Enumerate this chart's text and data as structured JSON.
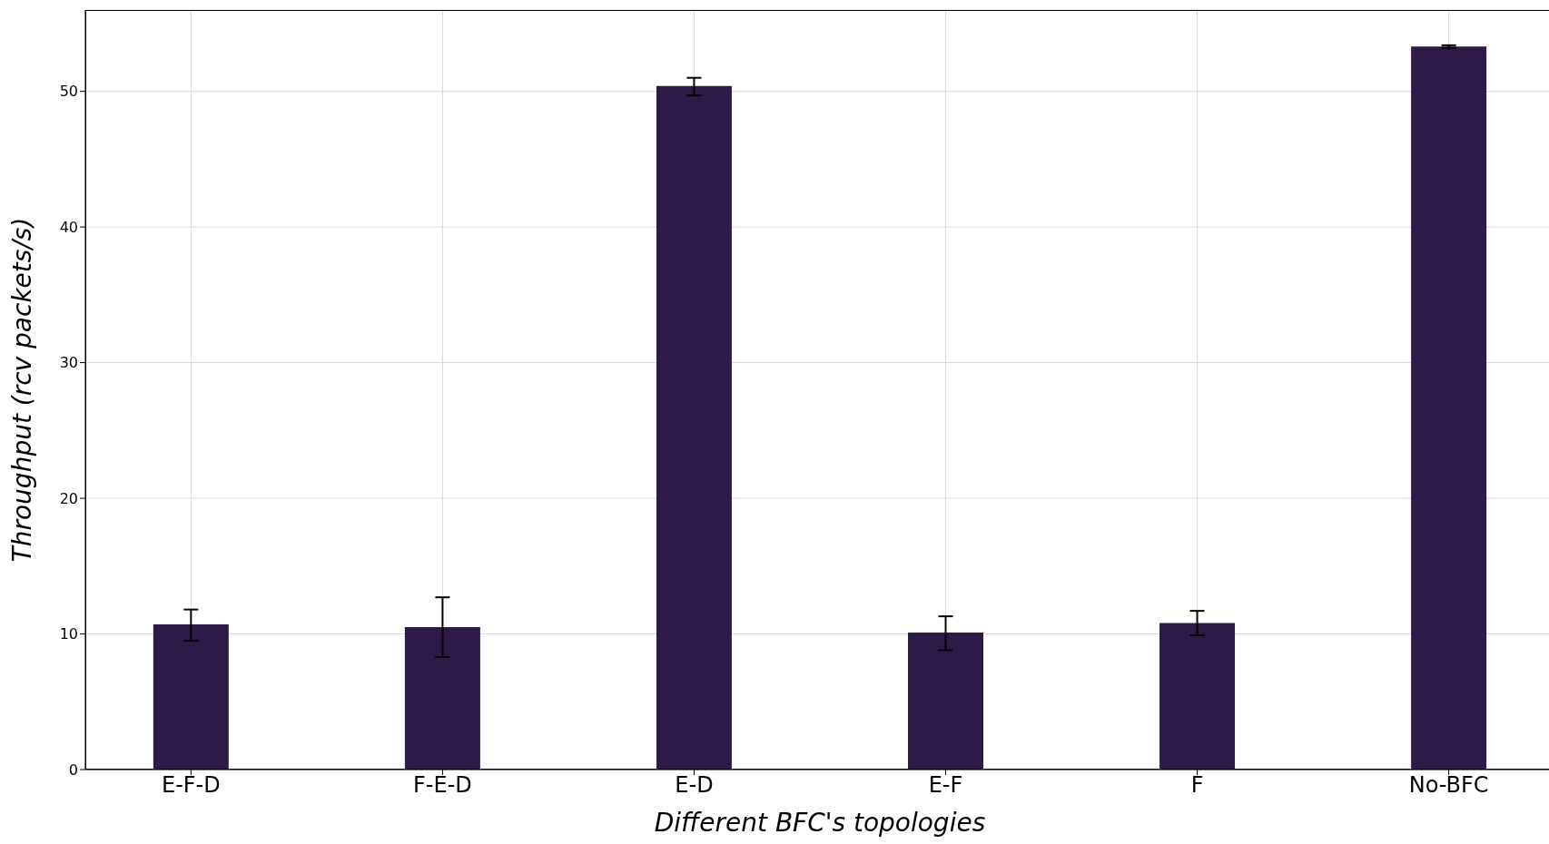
{
  "chart_data": {
    "type": "bar",
    "xlabel": "Different BFC's topologies",
    "ylabel": "Throughput (rcv packets/s)",
    "categories": [
      "E-F-D",
      "F-E-D",
      "E-D",
      "E-F",
      "F",
      "No-BFC"
    ],
    "values": [
      10.7,
      10.5,
      50.4,
      10.1,
      10.8,
      53.3
    ],
    "errors": [
      [
        9.5,
        11.8
      ],
      [
        8.3,
        12.7
      ],
      [
        49.7,
        51.0
      ],
      [
        8.8,
        11.3
      ],
      [
        9.9,
        11.7
      ],
      [
        53.2,
        53.4
      ]
    ],
    "color": "#2e1a47",
    "ylim": [
      0,
      56
    ],
    "yticks": [
      0,
      10,
      20,
      30,
      40,
      50
    ],
    "grid": true
  }
}
